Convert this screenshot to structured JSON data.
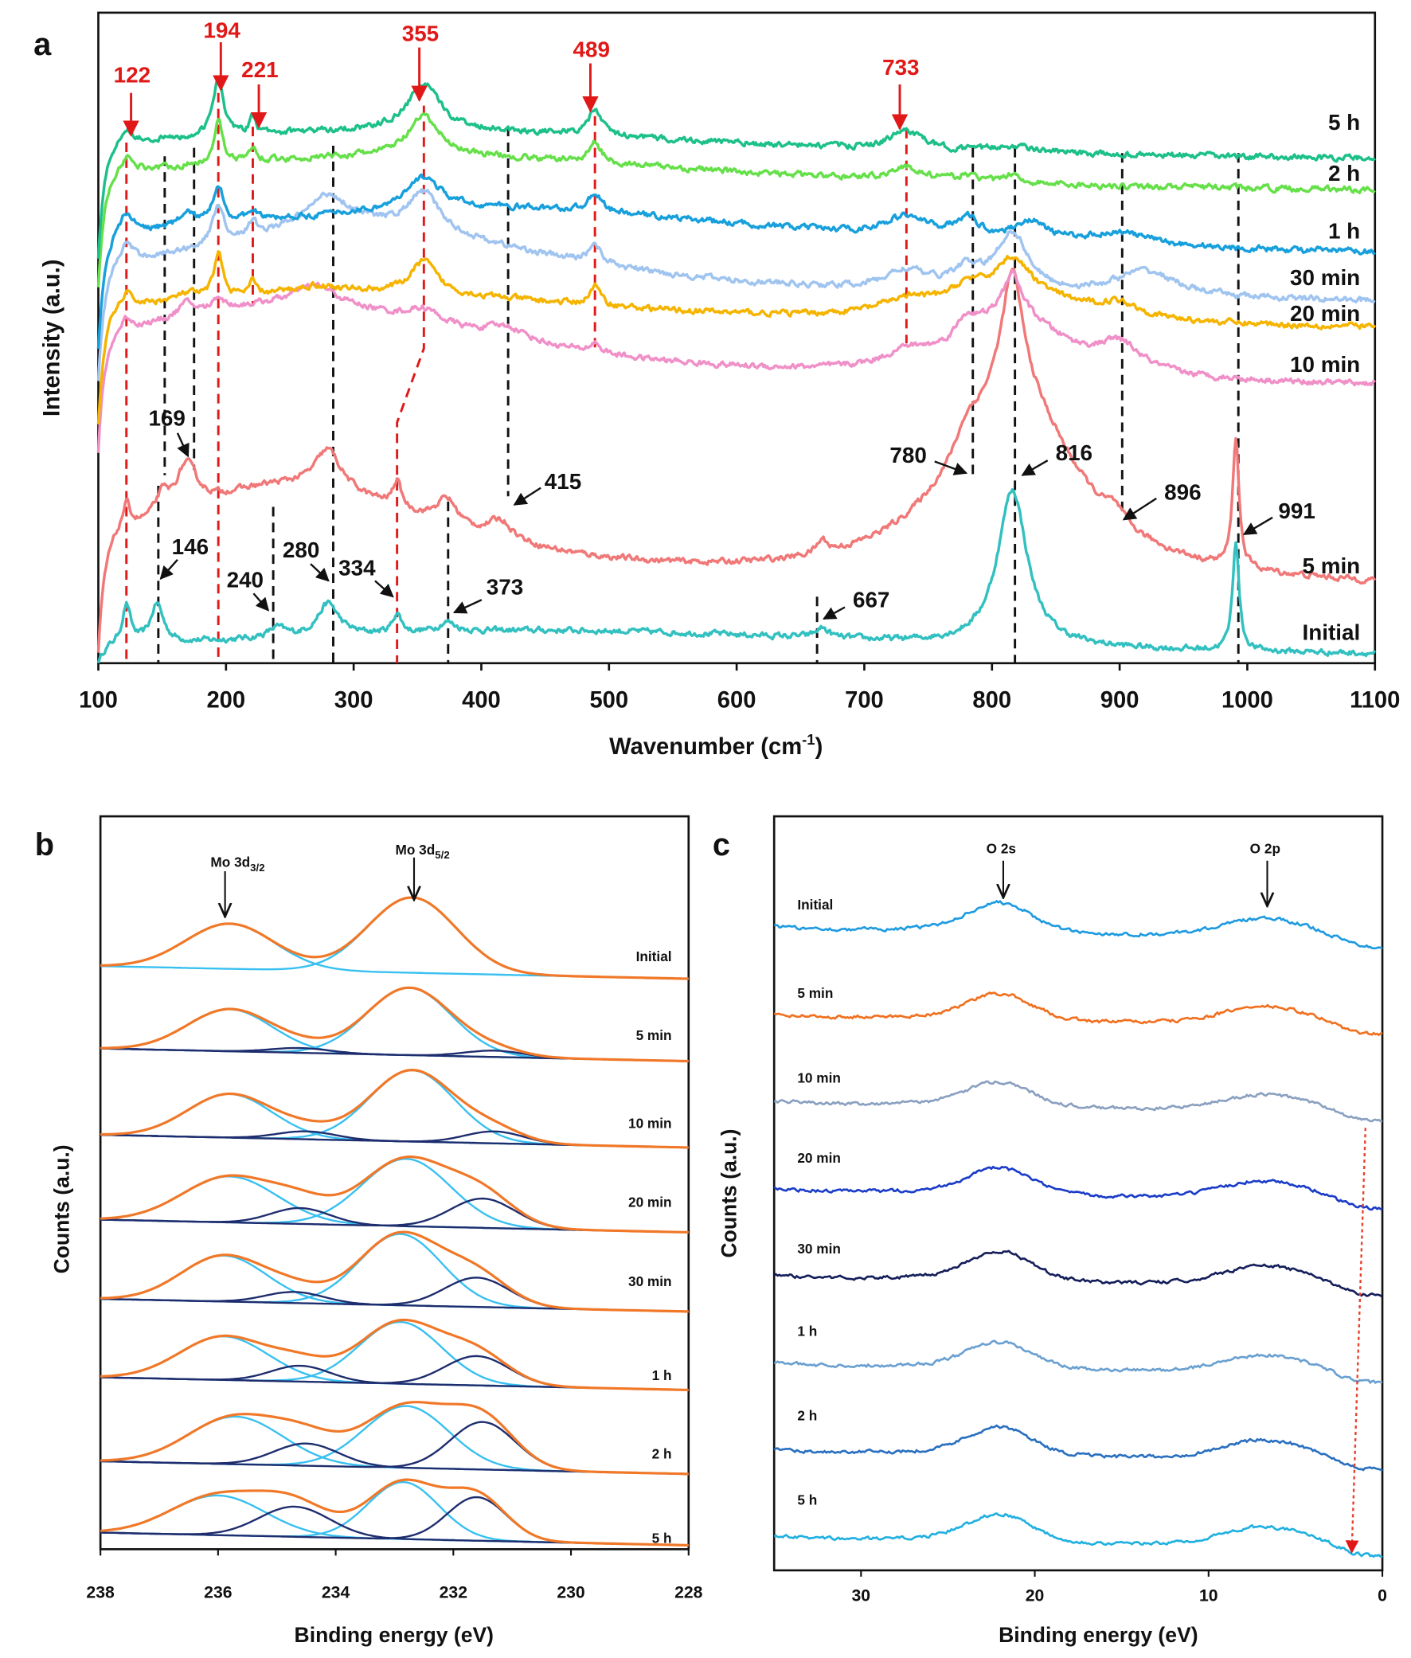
{
  "panels": {
    "a": "a",
    "b": "b",
    "c": "c"
  },
  "chart_data": [
    {
      "type": "line",
      "panel": "a",
      "xlabel": {
        "text": "Wavenumber (cm",
        "sup": "-1",
        "close": ")"
      },
      "ylabel": "Intensity (a.u.)",
      "xlim": [
        100,
        1100
      ],
      "ylim": [
        0,
        100
      ],
      "x_ticks": [
        "100",
        "200",
        "300",
        "400",
        "500",
        "600",
        "700",
        "800",
        "900",
        "1000",
        "1100"
      ],
      "grid": false,
      "y_ticks_shown": false,
      "red_labels": [
        "122",
        "194",
        "221",
        "355",
        "489",
        "733"
      ],
      "red_shift_to": 334,
      "black_guides": [
        152,
        175,
        147,
        237,
        284,
        374,
        421,
        663,
        785,
        818,
        902,
        993
      ],
      "black_labels": [
        "169",
        "146",
        "240",
        "280",
        "334",
        "373",
        "415",
        "667",
        "780",
        "816",
        "896",
        "991"
      ],
      "series": [
        {
          "name": "Initial",
          "color": "#33c0c0",
          "offset": 0.5,
          "peaks": [
            [
              450,
              4.5,
              350
            ],
            [
              122,
              6,
              4
            ],
            [
              146,
              6,
              6
            ],
            [
              240,
              1.5,
              8
            ],
            [
              280,
              5,
              10
            ],
            [
              334,
              3,
              4
            ],
            [
              373,
              1.5,
              8
            ],
            [
              667,
              1.5,
              6
            ],
            [
              816,
              24,
              14
            ],
            [
              991,
              17,
              3
            ]
          ]
        },
        {
          "name": "5 min",
          "color": "#f07878",
          "offset": 11,
          "peaks": [
            [
              250,
              16,
              150
            ],
            [
              816,
              30,
              60
            ],
            [
              816,
              18,
              10
            ],
            [
              780,
              3,
              10
            ],
            [
              896,
              2,
              8
            ],
            [
              991,
              20,
              3
            ],
            [
              122,
              4,
              4
            ],
            [
              150,
              3,
              6
            ],
            [
              169,
              7,
              10
            ],
            [
              280,
              6,
              12
            ],
            [
              334,
              4,
              4
            ],
            [
              373,
              4,
              10
            ],
            [
              415,
              3,
              12
            ],
            [
              667,
              2,
              5
            ]
          ]
        },
        {
          "name": "10 min",
          "color": "#f090c8",
          "offset": 42,
          "peaks": [
            [
              250,
              13,
              200
            ],
            [
              816,
              10,
              50
            ],
            [
              816,
              6,
              8
            ],
            [
              780,
              3,
              10
            ],
            [
              900,
              4,
              20
            ],
            [
              733,
              2,
              20
            ],
            [
              489,
              1.5,
              5
            ],
            [
              420,
              2,
              20
            ],
            [
              355,
              2,
              15
            ],
            [
              270,
              3,
              20
            ],
            [
              194,
              2,
              5
            ],
            [
              169,
              2,
              8
            ],
            [
              122,
              2,
              5
            ]
          ]
        },
        {
          "name": "20 min",
          "color": "#f5b400",
          "offset": 51,
          "peaks": [
            [
              300,
              6,
              250
            ],
            [
              816,
              5,
              60
            ],
            [
              816,
              5,
              15
            ],
            [
              780,
              2,
              12
            ],
            [
              900,
              2,
              20
            ],
            [
              733,
              2,
              25
            ],
            [
              489,
              3,
              5
            ],
            [
              355,
              5,
              12
            ],
            [
              194,
              7,
              4
            ],
            [
              221,
              2,
              3
            ],
            [
              122,
              2,
              5
            ],
            [
              170,
              1,
              10
            ],
            [
              270,
              1,
              20
            ]
          ]
        },
        {
          "name": "30 min",
          "color": "#a0c4f0",
          "offset": 55,
          "peaks": [
            [
              300,
              12,
              200
            ],
            [
              920,
              4,
              30
            ],
            [
              816,
              9,
              15
            ],
            [
              780,
              3,
              15
            ],
            [
              733,
              3,
              20
            ],
            [
              489,
              3,
              6
            ],
            [
              355,
              6,
              15
            ],
            [
              280,
              5,
              20
            ],
            [
              194,
              6,
              5
            ],
            [
              221,
              2,
              4
            ],
            [
              122,
              3,
              6
            ]
          ]
        },
        {
          "name": "1 h",
          "color": "#18a0dc",
          "offset": 62,
          "peaks": [
            [
              400,
              8,
              300
            ],
            [
              733,
              3,
              20
            ],
            [
              780,
              3,
              12
            ],
            [
              830,
              3,
              15
            ],
            [
              900,
              2,
              30
            ],
            [
              489,
              3,
              6
            ],
            [
              355,
              5,
              15
            ],
            [
              194,
              6,
              5
            ],
            [
              221,
              2,
              4
            ],
            [
              170,
              2,
              8
            ],
            [
              122,
              3,
              6
            ]
          ]
        },
        {
          "name": "2 h",
          "color": "#66e04a",
          "offset": 72,
          "peaks": [
            [
              350,
              6,
              300
            ],
            [
              733,
              2,
              15
            ],
            [
              816,
              1.5,
              6
            ],
            [
              780,
              1,
              10
            ],
            [
              489,
              3,
              6
            ],
            [
              355,
              6,
              15
            ],
            [
              194,
              7,
              4
            ],
            [
              221,
              2,
              4
            ],
            [
              122,
              2,
              6
            ]
          ]
        },
        {
          "name": "5 h",
          "color": "#1dc08a",
          "offset": 77,
          "peaks": [
            [
              350,
              5,
              300
            ],
            [
              733,
              3,
              15
            ],
            [
              816,
              1,
              20
            ],
            [
              489,
              4,
              6
            ],
            [
              355,
              7,
              15
            ],
            [
              194,
              9,
              5
            ],
            [
              221,
              2.5,
              3
            ],
            [
              122,
              2,
              6
            ]
          ]
        }
      ]
    },
    {
      "type": "line",
      "panel": "b",
      "xlabel": "Binding energy (eV)",
      "ylabel": "Counts (a.u.)",
      "xlim": [
        238,
        228
      ],
      "ylim": [
        0,
        9.25
      ],
      "x_ticks": [
        "238",
        "236",
        "234",
        "232",
        "230",
        "228"
      ],
      "annotations": [
        {
          "text": "Mo 3d",
          "sub": "3/2",
          "energy": 235.8
        },
        {
          "text": "Mo 3d",
          "sub": "5/2",
          "energy": 232.7
        }
      ],
      "colors": {
        "envelope": "#f07828",
        "mo6": "#38c0f0",
        "mo5": "#1e2d6e"
      },
      "series": [
        {
          "name": "Initial",
          "offset": 7.2,
          "mo6": [
            [
              235.8,
              0.57,
              0.75
            ],
            [
              232.7,
              0.95,
              0.75
            ]
          ],
          "mo5": []
        },
        {
          "name": "5 min",
          "offset": 6.16,
          "mo6": [
            [
              235.8,
              0.53,
              0.72
            ],
            [
              232.75,
              0.85,
              0.72
            ]
          ],
          "mo5": [
            [
              234.6,
              0.06,
              0.5
            ],
            [
              231.3,
              0.08,
              0.5
            ]
          ]
        },
        {
          "name": "10 min",
          "offset": 5.07,
          "mo6": [
            [
              235.8,
              0.55,
              0.72
            ],
            [
              232.7,
              0.9,
              0.72
            ]
          ],
          "mo5": [
            [
              234.5,
              0.1,
              0.5
            ],
            [
              231.3,
              0.15,
              0.5
            ]
          ]
        },
        {
          "name": "20 min",
          "offset": 4.0,
          "mo6": [
            [
              235.8,
              0.58,
              0.8
            ],
            [
              232.8,
              0.85,
              0.75
            ]
          ],
          "mo5": [
            [
              234.6,
              0.2,
              0.5
            ],
            [
              231.5,
              0.37,
              0.55
            ]
          ]
        },
        {
          "name": "30 min",
          "offset": 3.0,
          "mo6": [
            [
              235.9,
              0.58,
              0.72
            ],
            [
              232.9,
              0.9,
              0.7
            ]
          ],
          "mo5": [
            [
              234.7,
              0.14,
              0.5
            ],
            [
              231.6,
              0.37,
              0.55
            ]
          ]
        },
        {
          "name": "1 h",
          "offset": 2.01,
          "mo6": [
            [
              235.9,
              0.55,
              0.75
            ],
            [
              232.9,
              0.78,
              0.7
            ]
          ],
          "mo5": [
            [
              234.6,
              0.2,
              0.5
            ],
            [
              231.6,
              0.37,
              0.55
            ]
          ]
        },
        {
          "name": "2 h",
          "offset": 0.95,
          "mo6": [
            [
              235.7,
              0.6,
              0.8
            ],
            [
              232.8,
              0.78,
              0.72
            ]
          ],
          "mo5": [
            [
              234.5,
              0.28,
              0.55
            ],
            [
              231.5,
              0.6,
              0.55
            ]
          ]
        },
        {
          "name": "5 h",
          "offset": 0.05,
          "mo6": [
            [
              236.0,
              0.5,
              0.8
            ],
            [
              232.85,
              0.72,
              0.6
            ]
          ],
          "mo5": [
            [
              234.7,
              0.38,
              0.6
            ],
            [
              231.6,
              0.55,
              0.5
            ]
          ]
        }
      ]
    },
    {
      "type": "line",
      "panel": "c",
      "xlabel": "Binding energy (eV)",
      "ylabel": "Counts (a.u.)",
      "xlim": [
        35,
        0
      ],
      "ylim": [
        0,
        23.8
      ],
      "x_ticks": [
        "30",
        "20",
        "10",
        "0"
      ],
      "annotations": [
        {
          "text": "O 2s",
          "energy": 22
        },
        {
          "text": "O 2p",
          "energy": 6.5
        }
      ],
      "arrow_color": "#e8402a",
      "series": [
        {
          "name": "Initial",
          "color": "#1e9be0",
          "offset": 20.07,
          "o2s": 0.85,
          "o2p": 0.5
        },
        {
          "name": "5 min",
          "color": "#f07020",
          "offset": 17.3,
          "o2s": 0.75,
          "o2p": 0.5
        },
        {
          "name": "10 min",
          "color": "#8aa0c0",
          "offset": 14.57,
          "o2s": 0.7,
          "o2p": 0.45
        },
        {
          "name": "20 min",
          "color": "#1a3cc8",
          "offset": 11.8,
          "o2s": 0.75,
          "o2p": 0.5
        },
        {
          "name": "30 min",
          "color": "#141e5a",
          "offset": 9.07,
          "o2s": 0.85,
          "o2p": 0.55
        },
        {
          "name": "1 h",
          "color": "#6aa0d0",
          "offset": 6.3,
          "o2s": 0.75,
          "o2p": 0.5
        },
        {
          "name": "2 h",
          "color": "#2a70c0",
          "offset": 3.57,
          "o2s": 0.8,
          "o2p": 0.55
        },
        {
          "name": "5 h",
          "color": "#20b0e0",
          "offset": 0.83,
          "o2s": 0.8,
          "o2p": 0.55
        }
      ]
    }
  ]
}
